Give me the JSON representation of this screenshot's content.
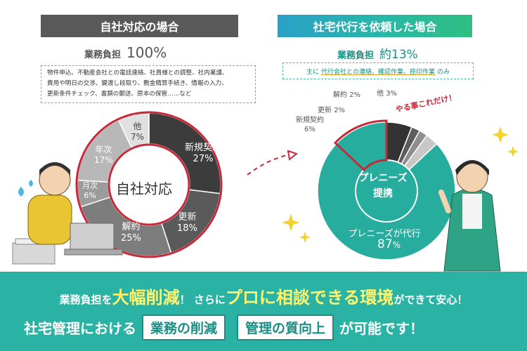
{
  "left": {
    "header": "自社対応の場合",
    "burden_label": "業務負担",
    "burden_value": "100%",
    "tasks": [
      "物件申込、不動産会社との電話連絡、社員様との調整、社内稟議、",
      "費用や明日の交渉、鍵渡し段取り、敷金精算手続き、情報の入力、",
      "更新条件チェック、書類の郵送、原本の保管……など"
    ],
    "donut_center": "自社対応"
  },
  "right": {
    "header": "社宅代行を依頼した場合",
    "burden_label": "業務負担",
    "burden_value": "約13%",
    "note_prefix": "主に",
    "note_highlight": "代行会社との連絡、確認作業、捺印作業",
    "note_suffix": "のみ",
    "callout": "やる事これだけ！",
    "donut_center_line1": "プレニーズ",
    "donut_center_line2": "提携",
    "big_label": "プレニーズが代行",
    "big_value": "87",
    "big_unit": "%"
  },
  "banner": {
    "line1_a": "業務負担を",
    "line1_b": "大幅削減",
    "line1_c": "！ さらに",
    "line1_d": "プロに相談できる環境",
    "line1_e": "ができて安心！",
    "line2_a": "社宅管理における",
    "pill1": "業務の削減",
    "pill2": "管理の質向上",
    "line2_b": "が可能です！"
  },
  "chart_data": [
    {
      "type": "pie",
      "series": [
        {
          "label": "新規契約",
          "value": 27
        },
        {
          "label": "更新",
          "value": 18
        },
        {
          "label": "解約",
          "value": 25
        },
        {
          "label": "月次",
          "value": 6
        },
        {
          "label": "年次",
          "value": 17
        },
        {
          "label": "他",
          "value": 7
        }
      ],
      "colors": [
        "#3c3c3c",
        "#5a5a5a",
        "#7d7d7d",
        "#9c9c9c",
        "#b8b8b8",
        "#e0e0e0"
      ]
    },
    {
      "type": "pie",
      "series": [
        {
          "label": "プレニーズが代行",
          "value": 87
        },
        {
          "label": "新規契約",
          "value": 6
        },
        {
          "label": "更新",
          "value": 2
        },
        {
          "label": "解約",
          "value": 2
        },
        {
          "label": "他",
          "value": 3
        }
      ],
      "value_labels": [
        "87%",
        "6%",
        "2%",
        "2%",
        "3%"
      ],
      "colors": [
        "#26ad9e",
        "#333333",
        "#5c5c5c",
        "#8e8e8e",
        "#c8c8c8"
      ]
    }
  ]
}
